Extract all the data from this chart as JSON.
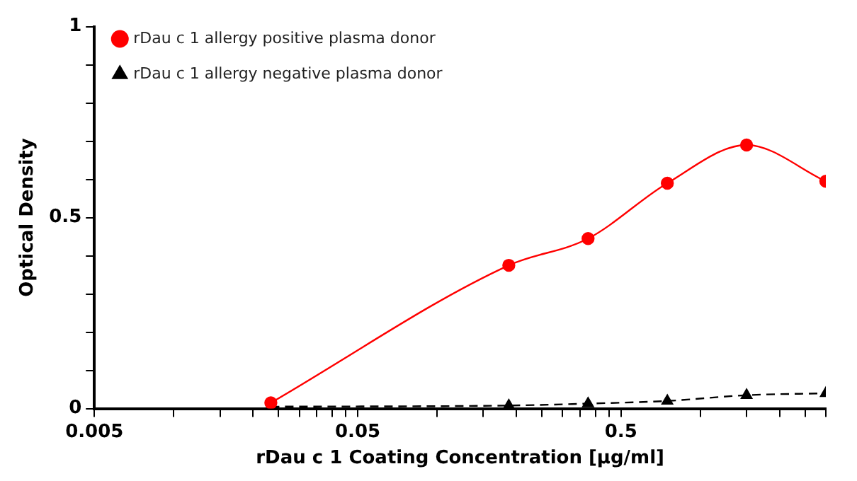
{
  "chart_data": {
    "type": "line",
    "xlabel": "rDau c 1 Coating Concentration [µg/ml]",
    "ylabel": "Optical Density",
    "x": [
      0.0234,
      0.1875,
      0.375,
      0.75,
      1.5,
      3
    ],
    "series": [
      {
        "name": "rDau c 1 allergy positive plasma donor",
        "color": "#ff0000",
        "values": [
          0.015,
          0.375,
          0.445,
          0.59,
          0.69,
          0.595
        ],
        "marker": "circle",
        "line_style": "solid"
      },
      {
        "name": "rDau c 1 allergy negative plasma donor",
        "color": "#000000",
        "values": [
          0.005,
          0.008,
          0.013,
          0.02,
          0.035,
          0.04
        ],
        "marker": "triangle",
        "line_style": "dashed"
      }
    ],
    "log": "x",
    "xlim": [
      0.005,
      3
    ],
    "xticks": [
      0.005,
      {
        "value": 0.01,
        "label": null
      },
      {
        "value": 0.015,
        "label": null
      },
      {
        "value": 0.02,
        "label": null
      },
      {
        "value": 0.025,
        "label": null
      },
      {
        "value": 0.03,
        "label": null
      },
      {
        "value": 0.035,
        "label": null
      },
      {
        "value": 0.04,
        "label": null
      },
      {
        "value": 0.045,
        "label": null
      },
      0.05,
      {
        "value": 0.1,
        "label": null
      },
      {
        "value": 0.15,
        "label": null
      },
      {
        "value": 0.2,
        "label": null
      },
      {
        "value": 0.25,
        "label": null
      },
      {
        "value": 0.3,
        "label": null
      },
      {
        "value": 0.35,
        "label": null
      },
      {
        "value": 0.4,
        "label": null
      },
      {
        "value": 0.45,
        "label": null
      },
      0.5,
      {
        "value": 1,
        "label": null
      },
      {
        "value": 1.5,
        "label": null
      },
      {
        "value": 2,
        "label": null
      },
      {
        "value": 2.5,
        "label": null
      },
      {
        "value": 3,
        "label": null
      }
    ],
    "ylim": [
      0,
      1
    ],
    "yticks": [
      0,
      {
        "value": 0.1,
        "label": null
      },
      {
        "value": 0.2,
        "label": null
      },
      {
        "value": 0.3,
        "label": null
      },
      {
        "value": 0.4,
        "label": null
      },
      0.5,
      {
        "value": 0.6,
        "label": null
      },
      {
        "value": 0.7,
        "label": null
      },
      {
        "value": 0.8,
        "label": null
      },
      {
        "value": 0.9,
        "label": null
      },
      1
    ],
    "grid": false,
    "legend": "top left"
  }
}
